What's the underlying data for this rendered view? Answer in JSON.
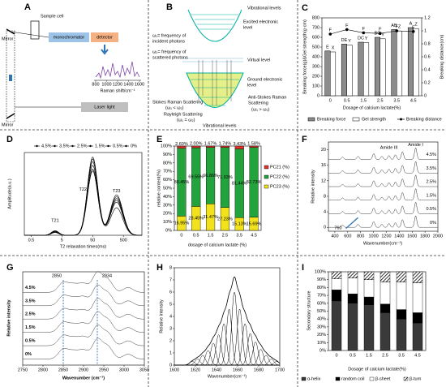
{
  "A": {
    "letter": "A",
    "sample_cell": "Sample cell",
    "mirror_top": "Mirror",
    "monochromator": "monochromator",
    "detector": "detector",
    "raman_axis": "Raman shift/cm⁻¹",
    "inset_xlim": [
      800,
      1600
    ],
    "inset_xticks": [
      800,
      1000,
      1200,
      1400,
      1600
    ],
    "laser": "Laser light",
    "mirror_bottom": "Mirror"
  },
  "B": {
    "letter": "B",
    "vib_top": "Vibrational levels",
    "excited": [
      "Excited electronic",
      "level"
    ],
    "incident": [
      "ω₁= frequency of",
      "incident photons"
    ],
    "scattered": [
      "ω₂= frequency of",
      "scattered photons"
    ],
    "virtual": "Virtual level",
    "ground": [
      "Ground electronic",
      "level"
    ],
    "stokes": [
      "Stokes Raman Scattering",
      "(ω₁ < ω₂)"
    ],
    "rayleigh": [
      "Rayleigh Scattering",
      "(ω₁ = ω₂)"
    ],
    "antistokes": [
      "Anti-Stokes Raman",
      "Scattering",
      "(ω₁ > ω₂)"
    ],
    "vib_bottom": "Vibrational levels"
  },
  "C": {
    "letter": "C",
    "type": "bar",
    "categories": [
      "0",
      "0.5",
      "1.5",
      "2.5",
      "3.5",
      "4.5"
    ],
    "ylim": [
      0,
      800
    ],
    "yticks": [
      0,
      100,
      200,
      300,
      400,
      500,
      600,
      700,
      800
    ],
    "y2lim": [
      0,
      1.2
    ],
    "y2ticks": [
      0,
      0.2,
      0.4,
      0.6,
      0.8,
      1,
      1.2
    ],
    "ylabel": "Breaking force(g)&Gel strength(g·cm)",
    "y2label": "Breaking distance(cm)",
    "xlabel": "Dosage of calcium lactate(%)",
    "series": [
      {
        "name": "Breaking force",
        "color": "#8c8c8c",
        "values": [
          460,
          530,
          550,
          600,
          680,
          700
        ],
        "letters": [
          "E",
          "DE",
          "DC",
          "BC",
          "AB",
          "A"
        ]
      },
      {
        "name": "Gel strength",
        "color": "#ffffff",
        "values": [
          450,
          520,
          545,
          585,
          665,
          690
        ],
        "letters": [
          "X",
          "Y",
          "Y",
          "Y",
          "Z",
          "Z"
        ]
      },
      {
        "name": "Breaking distance",
        "color": "#000000",
        "axis": "y2",
        "values": [
          0.95,
          1.02,
          0.97,
          0.96,
          1.0,
          0.99
        ],
        "letters": [
          "F",
          "F",
          "F",
          "F",
          "F",
          "F"
        ]
      }
    ]
  },
  "D": {
    "letter": "D",
    "type": "line",
    "xlim": [
      0.3,
      2000
    ],
    "xticks": [
      0.5,
      5,
      50,
      500
    ],
    "log_x": true,
    "ylim": [
      0,
      900
    ],
    "peak_centers": [
      3,
      50,
      300
    ],
    "peak_widths": [
      0.12,
      0.17,
      0.2
    ],
    "peak_names": [
      "T21",
      "T22",
      "T23"
    ],
    "xlabel": "T2 relaxation times(ms)",
    "ylabel": "Amplitude(a.u.)",
    "series": [
      {
        "name": "4.5%",
        "values": [
          50,
          760,
          420
        ]
      },
      {
        "name": "3.5%",
        "values": [
          45,
          800,
          400
        ]
      },
      {
        "name": "2.5%",
        "values": [
          40,
          830,
          380
        ]
      },
      {
        "name": "1.5%",
        "values": [
          35,
          720,
          360
        ]
      },
      {
        "name": "0.5%",
        "values": [
          40,
          700,
          440
        ]
      },
      {
        "name": "0%",
        "values": [
          30,
          850,
          300
        ]
      }
    ]
  },
  "E": {
    "letter": "E",
    "type": "stacked-bar",
    "categories": [
      "0",
      "0.5",
      "1.5",
      "2.5",
      "3.5",
      "4.5"
    ],
    "ylim": [
      0,
      100
    ],
    "yticks": [
      {
        "value": 0,
        "label": "0%"
      },
      {
        "value": 10,
        "label": "10%"
      },
      {
        "value": 20,
        "label": "20%"
      },
      {
        "value": 30,
        "label": "30%"
      },
      {
        "value": 40,
        "label": "40%"
      },
      {
        "value": 50,
        "label": "50%"
      },
      {
        "value": 60,
        "label": "60%"
      },
      {
        "value": 70,
        "label": "70%"
      },
      {
        "value": 80,
        "label": "80%"
      },
      {
        "value": 90,
        "label": "90%"
      },
      {
        "value": 100,
        "label": "100%"
      }
    ],
    "ylabel": "relative content(%)",
    "xlabel": "dosage of calcium lactate (%)",
    "series": [
      {
        "name": "PC23 (%)",
        "color": "#f2e21b",
        "values": [
          16.95,
          28.45,
          31.47,
          27.23,
          15.13,
          15.69
        ],
        "value_labels": [
          "16.95%",
          "28.45%",
          "31.47%",
          "27.23%",
          "15.13%",
          "15.69%"
        ]
      },
      {
        "name": "PC22 (%)",
        "color": "#22a33c",
        "values": [
          80.45,
          69.55,
          66.86,
          71.03,
          81.44,
          82.73
        ],
        "value_labels": [
          "80.45%",
          "69.55%",
          "66.86%",
          "71.03%",
          "81.44%",
          "82.73%"
        ]
      },
      {
        "name": "PC21 (%)",
        "color": "#e2332a",
        "values": [
          2.6,
          2.0,
          1.67,
          1.74,
          3.43,
          1.58
        ],
        "value_labels": [
          "2.60%",
          "2.00%",
          "1.67%",
          "1.74%",
          "3.43%",
          "1.58%"
        ]
      }
    ]
  },
  "F": {
    "letter": "F",
    "type": "spectra",
    "xlim": [
      300,
      2000
    ],
    "xticks": [
      400,
      600,
      800,
      1000,
      1200,
      1400,
      1600,
      1800,
      2000
    ],
    "ylim": [
      -1,
      22
    ],
    "yticks": [
      0,
      4,
      8,
      12,
      16,
      20
    ],
    "band_centers": [
      520,
      760,
      1003,
      1130,
      1240,
      1340,
      1450,
      1655
    ],
    "band_heights": [
      0.6,
      0.8,
      1.5,
      0.8,
      1.0,
      1.2,
      2.0,
      3.0
    ],
    "band_width": 18,
    "amide3": "Amide III",
    "amide3_at": 1240,
    "amide1": "Amide I",
    "amide1_at": 1655,
    "arrow_at": 760,
    "xlabel": "Wavenumber(cm⁻¹)",
    "ylabel": "Relative intensity",
    "series": [
      {
        "name": "0%",
        "offset": 0
      },
      {
        "name": "0.5%",
        "offset": 3.5
      },
      {
        "name": "1.5%",
        "offset": 7
      },
      {
        "name": "2.5%",
        "offset": 10.5
      },
      {
        "name": "3.5%",
        "offset": 14
      },
      {
        "name": "4.5%",
        "offset": 17.5
      }
    ]
  },
  "G": {
    "letter": "G",
    "type": "spectra",
    "xlim": [
      2750,
      3050
    ],
    "xticks": [
      2750,
      2800,
      2850,
      2900,
      2950,
      3000,
      3050
    ],
    "ylim": [
      -0.5,
      7.2
    ],
    "band_centers": [
      2850,
      2875,
      2900,
      2934,
      2960,
      3010
    ],
    "band_heights": [
      0.8,
      0.6,
      0.7,
      1.6,
      1.0,
      0.4
    ],
    "band_width": 12,
    "marker_lines": [
      2850,
      2934
    ],
    "xlabel": "Wavenumber (cm⁻¹)",
    "ylabel": "Relative intensity",
    "series": [
      {
        "name": "0%",
        "offset": 0
      },
      {
        "name": "0.5%",
        "offset": 1.1
      },
      {
        "name": "1.5%",
        "offset": 2.2
      },
      {
        "name": "2.5%",
        "offset": 3.3
      },
      {
        "name": "3.5%",
        "offset": 4.4
      },
      {
        "name": "4.5%",
        "offset": 5.5
      }
    ]
  },
  "H": {
    "letter": "H",
    "type": "fit",
    "xlim": [
      1600,
      1700
    ],
    "xticks": [
      1600,
      1620,
      1640,
      1660,
      1680,
      1700
    ],
    "ylim": [
      0,
      8
    ],
    "yticks": [
      0,
      1,
      2,
      3,
      4,
      5,
      6,
      7,
      8
    ],
    "component_centers": [
      1617,
      1622,
      1627,
      1632,
      1637,
      1642,
      1647,
      1652,
      1657,
      1662,
      1667,
      1672,
      1677,
      1682,
      1687,
      1692,
      1697
    ],
    "component_heights": [
      0.3,
      0.5,
      0.8,
      1.2,
      1.8,
      2.5,
      3.4,
      4.6,
      6,
      4.6,
      3.4,
      2.6,
      1.9,
      1.3,
      0.8,
      0.5,
      0.3
    ],
    "component_width": 2.5,
    "xlabel": "Wavenumber(cm⁻¹)",
    "ylabel": "Relative intensity"
  },
  "I": {
    "letter": "I",
    "type": "stacked-bar",
    "categories": [
      "0",
      "0.5",
      "1.5",
      "2.5",
      "3.5",
      "4.5"
    ],
    "ylim": [
      0,
      100
    ],
    "yticks": [
      {
        "value": 0,
        "label": "0%"
      },
      {
        "value": 10,
        "label": "10%"
      },
      {
        "value": 20,
        "label": "20%"
      },
      {
        "value": 30,
        "label": "30%"
      },
      {
        "value": 40,
        "label": "40%"
      },
      {
        "value": 50,
        "label": "50%"
      },
      {
        "value": 60,
        "label": "60%"
      },
      {
        "value": 70,
        "label": "70%"
      },
      {
        "value": 80,
        "label": "80%"
      },
      {
        "value": 90,
        "label": "90%"
      },
      {
        "value": 100,
        "label": "100%"
      }
    ],
    "ylabel": "Secondary structure",
    "xlabel": "Dosage of calcium lactate(%)",
    "series": [
      {
        "name": "α-helix",
        "color": "#3a3a3a",
        "values": [
          63,
          60,
          58,
          48,
          40,
          35
        ]
      },
      {
        "name": "random coil",
        "color": "#000000",
        "values": [
          14,
          12,
          10,
          11,
          12,
          13
        ]
      },
      {
        "name": "β-sheet",
        "color": "#ffffff",
        "values": [
          14,
          20,
          22,
          28,
          35,
          38
        ]
      },
      {
        "name": "β-turn",
        "color": "url(#hatch)",
        "values": [
          9,
          8,
          10,
          13,
          13,
          14
        ]
      }
    ]
  }
}
